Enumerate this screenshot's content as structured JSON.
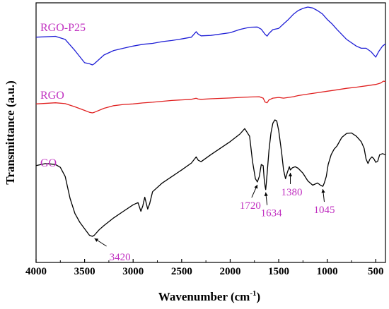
{
  "chart_data": {
    "type": "line",
    "xlabel": "Wavenumber (cm",
    "xlabel_sup": "-1",
    "xlabel_end": ")",
    "ylabel": "Transmittance (a.u.)",
    "xlim": [
      4000,
      400
    ],
    "x_reversed": true,
    "xticks": [
      "4000",
      "3500",
      "3000",
      "2500",
      "2000",
      "1500",
      "1000",
      "500"
    ],
    "xtick_values": [
      4000,
      3500,
      3000,
      2500,
      2000,
      1500,
      1000,
      500
    ],
    "y_ticks_shown": false,
    "grid": false,
    "legend": "labels placed beside each curve at the left",
    "series": [
      {
        "name": "RGO-P25",
        "color": "#1f1fd6",
        "points": [
          [
            4000,
            0.88
          ],
          [
            3800,
            0.884
          ],
          [
            3700,
            0.87
          ],
          [
            3600,
            0.82
          ],
          [
            3500,
            0.765
          ],
          [
            3450,
            0.76
          ],
          [
            3420,
            0.755
          ],
          [
            3400,
            0.76
          ],
          [
            3300,
            0.8
          ],
          [
            3200,
            0.82
          ],
          [
            3100,
            0.83
          ],
          [
            3000,
            0.84
          ],
          [
            2900,
            0.848
          ],
          [
            2800,
            0.852
          ],
          [
            2700,
            0.86
          ],
          [
            2600,
            0.865
          ],
          [
            2500,
            0.872
          ],
          [
            2400,
            0.88
          ],
          [
            2350,
            0.905
          ],
          [
            2330,
            0.894
          ],
          [
            2300,
            0.886
          ],
          [
            2200,
            0.888
          ],
          [
            2000,
            0.9
          ],
          [
            1900,
            0.915
          ],
          [
            1800,
            0.925
          ],
          [
            1720,
            0.926
          ],
          [
            1680,
            0.916
          ],
          [
            1640,
            0.893
          ],
          [
            1620,
            0.885
          ],
          [
            1600,
            0.897
          ],
          [
            1560,
            0.914
          ],
          [
            1500,
            0.92
          ],
          [
            1450,
            0.94
          ],
          [
            1400,
            0.96
          ],
          [
            1350,
            0.983
          ],
          [
            1300,
            1.0
          ],
          [
            1250,
            1.01
          ],
          [
            1200,
            1.016
          ],
          [
            1150,
            1.012
          ],
          [
            1100,
            1.0
          ],
          [
            1050,
            0.985
          ],
          [
            1000,
            0.96
          ],
          [
            950,
            0.94
          ],
          [
            900,
            0.915
          ],
          [
            800,
            0.87
          ],
          [
            700,
            0.84
          ],
          [
            650,
            0.83
          ],
          [
            600,
            0.83
          ],
          [
            550,
            0.815
          ],
          [
            500,
            0.79
          ],
          [
            470,
            0.815
          ],
          [
            430,
            0.84
          ],
          [
            400,
            0.85
          ]
        ]
      },
      {
        "name": "RGO",
        "color": "#e01f1f",
        "points": [
          [
            4000,
            0.56
          ],
          [
            3800,
            0.568
          ],
          [
            3700,
            0.562
          ],
          [
            3600,
            0.54
          ],
          [
            3500,
            0.515
          ],
          [
            3450,
            0.502
          ],
          [
            3420,
            0.498
          ],
          [
            3400,
            0.502
          ],
          [
            3300,
            0.53
          ],
          [
            3200,
            0.548
          ],
          [
            3100,
            0.556
          ],
          [
            3000,
            0.56
          ],
          [
            2900,
            0.567
          ],
          [
            2800,
            0.572
          ],
          [
            2700,
            0.578
          ],
          [
            2600,
            0.584
          ],
          [
            2500,
            0.588
          ],
          [
            2400,
            0.592
          ],
          [
            2350,
            0.599
          ],
          [
            2330,
            0.594
          ],
          [
            2300,
            0.592
          ],
          [
            2200,
            0.596
          ],
          [
            2000,
            0.601
          ],
          [
            1900,
            0.605
          ],
          [
            1800,
            0.608
          ],
          [
            1700,
            0.61
          ],
          [
            1660,
            0.6
          ],
          [
            1640,
            0.573
          ],
          [
            1620,
            0.568
          ],
          [
            1600,
            0.588
          ],
          [
            1560,
            0.6
          ],
          [
            1500,
            0.605
          ],
          [
            1450,
            0.6
          ],
          [
            1400,
            0.605
          ],
          [
            1350,
            0.61
          ],
          [
            1300,
            0.618
          ],
          [
            1200,
            0.628
          ],
          [
            1100,
            0.638
          ],
          [
            1000,
            0.648
          ],
          [
            900,
            0.658
          ],
          [
            800,
            0.668
          ],
          [
            700,
            0.676
          ],
          [
            600,
            0.685
          ],
          [
            500,
            0.695
          ],
          [
            450,
            0.705
          ],
          [
            420,
            0.718
          ],
          [
            400,
            0.715
          ]
        ]
      },
      {
        "name": "GO",
        "color": "#000000",
        "points": [
          [
            4000,
            0.38
          ],
          [
            3900,
            0.39
          ],
          [
            3800,
            0.385
          ],
          [
            3750,
            0.372
          ],
          [
            3700,
            0.33
          ],
          [
            3650,
            0.23
          ],
          [
            3600,
            0.16
          ],
          [
            3550,
            0.12
          ],
          [
            3500,
            0.09
          ],
          [
            3450,
            0.06
          ],
          [
            3420,
            0.055
          ],
          [
            3400,
            0.06
          ],
          [
            3350,
            0.085
          ],
          [
            3300,
            0.105
          ],
          [
            3200,
            0.14
          ],
          [
            3100,
            0.17
          ],
          [
            3000,
            0.2
          ],
          [
            2950,
            0.21
          ],
          [
            2920,
            0.17
          ],
          [
            2900,
            0.195
          ],
          [
            2880,
            0.235
          ],
          [
            2850,
            0.18
          ],
          [
            2830,
            0.205
          ],
          [
            2800,
            0.26
          ],
          [
            2700,
            0.3
          ],
          [
            2600,
            0.33
          ],
          [
            2500,
            0.36
          ],
          [
            2400,
            0.392
          ],
          [
            2350,
            0.42
          ],
          [
            2330,
            0.405
          ],
          [
            2300,
            0.398
          ],
          [
            2200,
            0.43
          ],
          [
            2100,
            0.46
          ],
          [
            2000,
            0.49
          ],
          [
            1900,
            0.525
          ],
          [
            1850,
            0.55
          ],
          [
            1800,
            0.515
          ],
          [
            1770,
            0.4
          ],
          [
            1740,
            0.32
          ],
          [
            1720,
            0.305
          ],
          [
            1700,
            0.33
          ],
          [
            1680,
            0.385
          ],
          [
            1660,
            0.38
          ],
          [
            1650,
            0.32
          ],
          [
            1640,
            0.285
          ],
          [
            1634,
            0.27
          ],
          [
            1620,
            0.34
          ],
          [
            1600,
            0.45
          ],
          [
            1580,
            0.53
          ],
          [
            1560,
            0.575
          ],
          [
            1540,
            0.59
          ],
          [
            1520,
            0.585
          ],
          [
            1500,
            0.54
          ],
          [
            1470,
            0.44
          ],
          [
            1450,
            0.36
          ],
          [
            1430,
            0.32
          ],
          [
            1410,
            0.35
          ],
          [
            1390,
            0.375
          ],
          [
            1380,
            0.36
          ],
          [
            1360,
            0.37
          ],
          [
            1330,
            0.375
          ],
          [
            1300,
            0.368
          ],
          [
            1250,
            0.345
          ],
          [
            1200,
            0.31
          ],
          [
            1150,
            0.29
          ],
          [
            1100,
            0.3
          ],
          [
            1070,
            0.29
          ],
          [
            1045,
            0.285
          ],
          [
            1030,
            0.3
          ],
          [
            1010,
            0.33
          ],
          [
            990,
            0.385
          ],
          [
            960,
            0.43
          ],
          [
            930,
            0.455
          ],
          [
            900,
            0.47
          ],
          [
            850,
            0.51
          ],
          [
            800,
            0.528
          ],
          [
            750,
            0.53
          ],
          [
            700,
            0.515
          ],
          [
            650,
            0.49
          ],
          [
            620,
            0.46
          ],
          [
            600,
            0.41
          ],
          [
            580,
            0.39
          ],
          [
            560,
            0.41
          ],
          [
            540,
            0.42
          ],
          [
            520,
            0.412
          ],
          [
            500,
            0.395
          ],
          [
            480,
            0.4
          ],
          [
            460,
            0.43
          ],
          [
            430,
            0.435
          ],
          [
            400,
            0.43
          ]
        ]
      }
    ],
    "annotations": [
      {
        "text": "3420",
        "x": 3420,
        "y": 0.055
      },
      {
        "text": "1720",
        "x": 1720,
        "y": 0.305
      },
      {
        "text": "1634",
        "x": 1634,
        "y": 0.27
      },
      {
        "text": "1380",
        "x": 1380,
        "y": 0.36
      },
      {
        "text": "1045",
        "x": 1045,
        "y": 0.285
      }
    ]
  }
}
